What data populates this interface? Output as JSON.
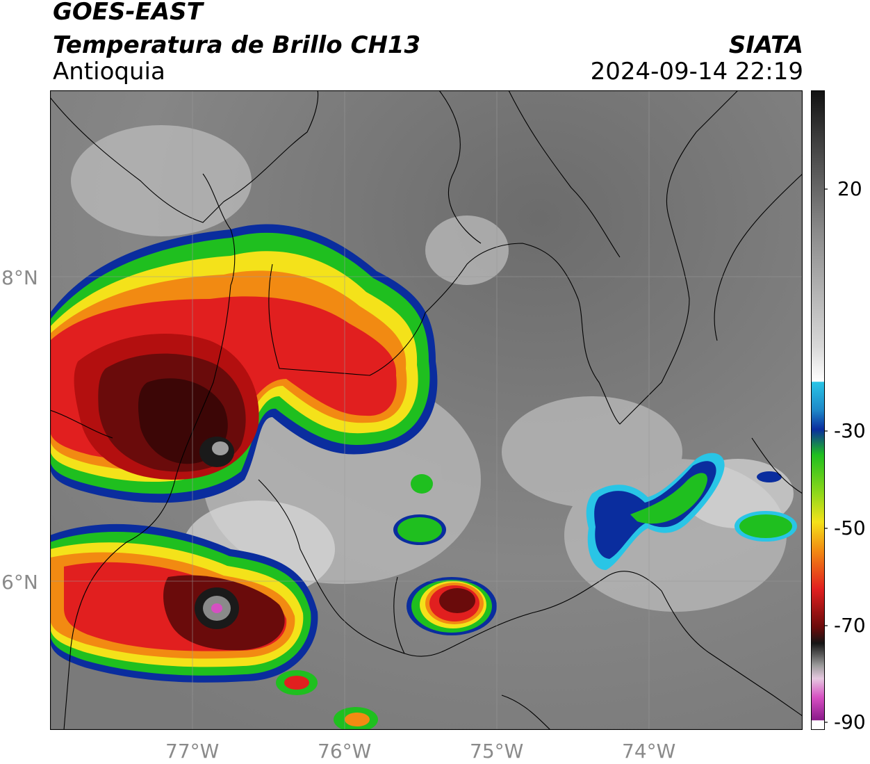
{
  "header": {
    "satellite": "GOES-EAST",
    "product": "Temperatura de Brillo CH13",
    "region": "Antioquia",
    "agency": "SIATA",
    "datetime": "2024-09-14 22:19"
  },
  "map": {
    "lat_labels": [
      "8°N",
      "6°N"
    ],
    "lon_labels": [
      "77°W",
      "76°W",
      "75°W",
      "74°W"
    ],
    "extent": {
      "lon_min": -77.94,
      "lon_max": -73.1,
      "lat_min": 5.23,
      "lat_max": 9.22
    }
  },
  "colorbar": {
    "ticks": [
      "20",
      "-30",
      "-50",
      "-70",
      "-90"
    ],
    "range": [
      -90,
      30
    ],
    "colors": {
      "warm_gray": "#707070",
      "white": "#ffffff",
      "cyan": "#29c5e6",
      "blue": "#0a2d9e",
      "green": "#1fbf1f",
      "yellow": "#f4e21a",
      "orange": "#f28a12",
      "red": "#e11f1f",
      "dark_red": "#6a0b0b",
      "black": "#151515",
      "magenta": "#d64fc2"
    }
  }
}
